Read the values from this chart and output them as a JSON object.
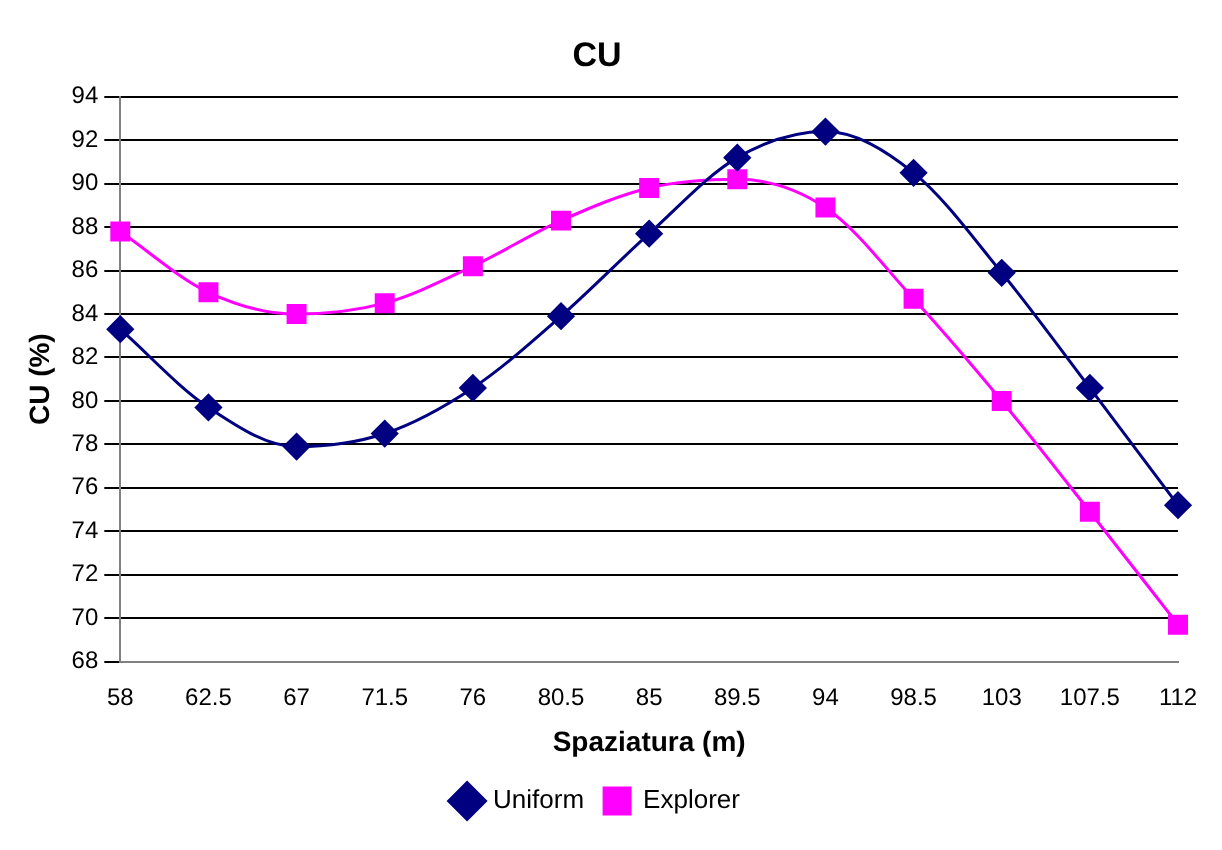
{
  "chart_data": {
    "type": "line",
    "title": "CU",
    "xlabel": "Spaziatura (m)",
    "ylabel": "CU (%)",
    "categories": [
      "58",
      "62.5",
      "67",
      "71.5",
      "76",
      "80.5",
      "85",
      "89.5",
      "94",
      "98.5",
      "103",
      "107.5",
      "112"
    ],
    "series": [
      {
        "name": "Uniform",
        "color": "#000080",
        "marker": "diamond",
        "values": [
          83.3,
          79.7,
          77.9,
          78.5,
          80.6,
          83.9,
          87.7,
          91.2,
          92.4,
          90.5,
          85.9,
          80.6,
          75.2
        ]
      },
      {
        "name": "Explorer",
        "color": "#ff00ff",
        "marker": "square",
        "values": [
          87.8,
          85.0,
          84.0,
          84.5,
          86.2,
          88.3,
          89.8,
          90.2,
          88.9,
          84.7,
          80.0,
          74.9,
          69.7
        ]
      }
    ],
    "ylim": [
      68,
      94
    ],
    "yticks": [
      68,
      70,
      72,
      74,
      76,
      78,
      80,
      82,
      84,
      86,
      88,
      90,
      92,
      94
    ],
    "grid": "y",
    "legend": "bottom"
  }
}
